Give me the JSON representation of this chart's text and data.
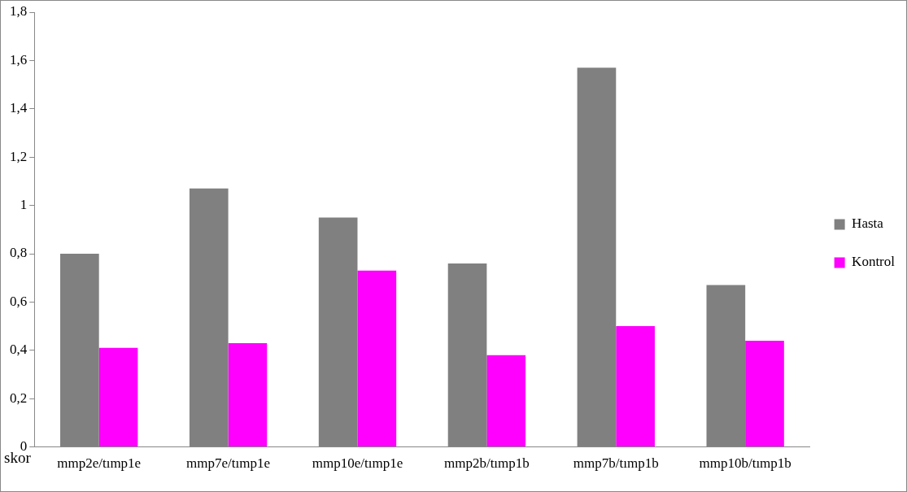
{
  "chart_data": {
    "type": "bar",
    "xlabel": "skor",
    "categories": [
      "mmp2e/tımp1e",
      "mmp7e/tımp1e",
      "mmp10e/tımp1e",
      "mmp2b/tımp1b",
      "mmp7b/tımp1b",
      "mmp10b/tımp1b"
    ],
    "series": [
      {
        "name": "Hasta",
        "color": "#808080",
        "values": [
          0.8,
          1.07,
          0.95,
          0.76,
          1.57,
          0.67
        ]
      },
      {
        "name": "Kontrol",
        "color": "#ff00ff",
        "values": [
          0.41,
          0.43,
          0.73,
          0.38,
          0.5,
          0.44
        ]
      }
    ],
    "ylim": [
      0,
      1.8
    ],
    "yticks": [
      0,
      {
        "value": 0.2,
        "label": "0,2"
      },
      {
        "value": 0.4,
        "label": "0,4"
      },
      {
        "value": 0.6,
        "label": "0,6"
      },
      {
        "value": 0.8,
        "label": "0,8"
      },
      1,
      {
        "value": 1.2,
        "label": "1,2"
      },
      {
        "value": 1.4,
        "label": "1,4"
      },
      {
        "value": 1.6,
        "label": "1,6"
      },
      {
        "value": 1.8,
        "label": "1,8"
      }
    ],
    "grid": false,
    "legend": "right"
  }
}
